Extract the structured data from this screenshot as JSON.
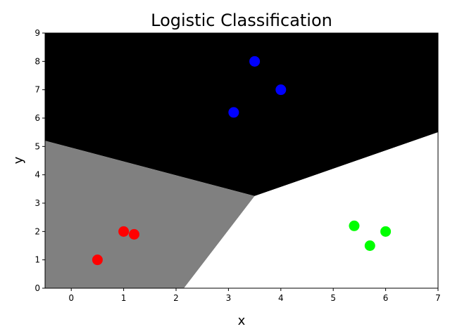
{
  "chart_data": {
    "type": "scatter",
    "title": "Logistic Classification",
    "xlabel": "x",
    "ylabel": "y",
    "xlim": [
      -0.5,
      7
    ],
    "ylim": [
      0,
      9
    ],
    "x_ticks": [
      0,
      1,
      2,
      3,
      4,
      5,
      6,
      7
    ],
    "y_ticks": [
      0,
      1,
      2,
      3,
      4,
      5,
      6,
      7,
      8,
      9
    ],
    "grid": false,
    "decision_regions": [
      {
        "color": "#000000",
        "polygon": [
          [
            -0.5,
            9
          ],
          [
            7,
            9
          ],
          [
            7,
            5.5
          ],
          [
            3.5,
            3.25
          ],
          [
            -0.5,
            5.2
          ]
        ]
      },
      {
        "color": "#808080",
        "polygon": [
          [
            -0.5,
            5.2
          ],
          [
            3.5,
            3.25
          ],
          [
            2.15,
            0
          ],
          [
            -0.5,
            0
          ]
        ]
      },
      {
        "color": "#ffffff",
        "polygon": [
          [
            3.5,
            3.25
          ],
          [
            7,
            5.5
          ],
          [
            7,
            0
          ],
          [
            2.15,
            0
          ]
        ]
      }
    ],
    "series": [
      {
        "color": "#ff0000",
        "points": [
          [
            0.5,
            1.0
          ],
          [
            1.0,
            2.0
          ],
          [
            1.2,
            1.9
          ]
        ]
      },
      {
        "color": "#0000ff",
        "points": [
          [
            3.1,
            6.2
          ],
          [
            3.5,
            8.0
          ],
          [
            4.0,
            7.0
          ]
        ]
      },
      {
        "color": "#00ff00",
        "points": [
          [
            5.4,
            2.2
          ],
          [
            5.7,
            1.5
          ],
          [
            6.0,
            2.0
          ]
        ]
      }
    ]
  }
}
